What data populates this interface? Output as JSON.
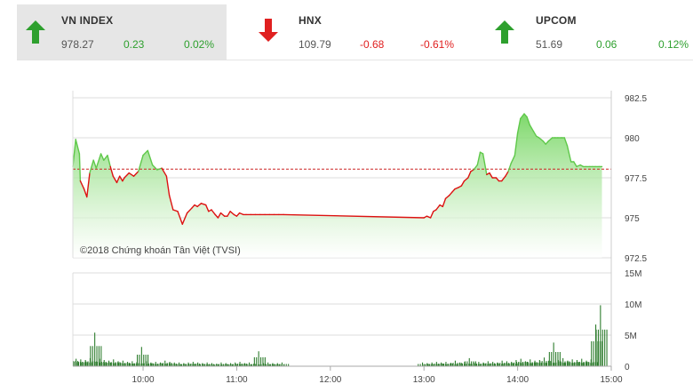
{
  "indices": [
    {
      "name": "VN INDEX",
      "value": "978.27",
      "change": "0.23",
      "percent": "0.02%",
      "direction": "up",
      "icon": "arrow-up-icon",
      "active": true
    },
    {
      "name": "HNX",
      "value": "109.79",
      "change": "-0.68",
      "percent": "-0.61%",
      "direction": "down",
      "icon": "arrow-down-icon",
      "active": false
    },
    {
      "name": "UPCOM",
      "value": "51.69",
      "change": "0.06",
      "percent": "0.12%",
      "direction": "up",
      "icon": "arrow-up-icon",
      "active": false
    }
  ],
  "colors": {
    "up": "#2ea02e",
    "down": "#e02020",
    "line": "#dd1111",
    "area": "#7fd86a",
    "reference": "#cc2222",
    "volume": "#2e7d2e"
  },
  "chart_data": {
    "type": "area",
    "copyright": "©2018 Chứng khoán Tân Việt (TVSI)",
    "price": {
      "ylim": [
        972.5,
        982.5
      ],
      "yticks": [
        "982.5",
        "980",
        "977.5",
        "975",
        "972.5"
      ],
      "ytick_values": [
        982.5,
        980,
        977.5,
        975,
        972.5
      ],
      "reference": 978.04,
      "x": [
        9.25,
        9.28,
        9.32,
        9.33,
        9.37,
        9.4,
        9.43,
        9.47,
        9.5,
        9.55,
        9.58,
        9.62,
        9.65,
        9.68,
        9.72,
        9.75,
        9.78,
        9.8,
        9.85,
        9.9,
        9.95,
        10.0,
        10.05,
        10.1,
        10.15,
        10.2,
        10.25,
        10.28,
        10.32,
        10.37,
        10.42,
        10.47,
        10.52,
        10.55,
        10.58,
        10.62,
        10.67,
        10.7,
        10.73,
        10.77,
        10.8,
        10.83,
        10.87,
        10.9,
        10.93,
        10.97,
        11.0,
        11.03,
        11.07,
        11.1,
        11.15,
        11.2,
        11.25,
        11.3,
        11.35,
        11.4,
        11.45,
        11.5,
        13.0,
        13.03,
        13.07,
        13.1,
        13.13,
        13.17,
        13.2,
        13.23,
        13.27,
        13.3,
        13.33,
        13.37,
        13.4,
        13.43,
        13.47,
        13.5,
        13.53,
        13.57,
        13.6,
        13.63,
        13.67,
        13.7,
        13.73,
        13.77,
        13.8,
        13.83,
        13.87,
        13.9,
        13.93,
        13.97,
        14.0,
        14.03,
        14.07,
        14.1,
        14.13,
        14.17,
        14.2,
        14.23,
        14.27,
        14.3,
        14.33,
        14.37,
        14.4,
        14.43,
        14.47,
        14.5,
        14.53,
        14.57,
        14.6,
        14.63,
        14.67,
        14.7,
        14.73,
        14.77,
        14.8,
        14.83,
        14.87,
        14.9
      ],
      "y": [
        978.2,
        979.9,
        979.0,
        977.3,
        976.8,
        976.3,
        977.8,
        978.6,
        978.1,
        979.0,
        978.6,
        978.9,
        978.2,
        977.6,
        977.2,
        977.6,
        977.3,
        977.5,
        977.8,
        977.6,
        977.9,
        978.9,
        979.2,
        978.3,
        978.0,
        978.1,
        977.6,
        976.4,
        975.5,
        975.4,
        974.6,
        975.3,
        975.6,
        975.8,
        975.7,
        975.9,
        975.8,
        975.4,
        975.5,
        975.2,
        975.0,
        975.3,
        975.1,
        975.1,
        975.4,
        975.2,
        975.1,
        975.3,
        975.2,
        975.2,
        975.2,
        975.2,
        975.2,
        975.2,
        975.2,
        975.2,
        975.2,
        975.2,
        975.0,
        975.1,
        975.0,
        975.4,
        975.5,
        975.8,
        975.7,
        976.2,
        976.4,
        976.6,
        976.8,
        976.9,
        977.0,
        977.3,
        977.5,
        977.9,
        978.0,
        978.3,
        979.1,
        979.0,
        977.7,
        977.8,
        977.5,
        977.5,
        977.3,
        977.3,
        977.6,
        977.9,
        978.4,
        978.9,
        980.3,
        981.2,
        981.5,
        981.3,
        980.8,
        980.4,
        980.1,
        980.0,
        979.8,
        979.6,
        979.8,
        980.0,
        980.0,
        980.0,
        980.0,
        980.0,
        979.5,
        978.5,
        978.5,
        978.2,
        978.3,
        978.2,
        978.2,
        978.2,
        978.2,
        978.2,
        978.2,
        978.2
      ]
    },
    "volume": {
      "ylim": [
        0,
        15
      ],
      "yticks": [
        "15M",
        "10M",
        "5M",
        "0"
      ],
      "ytick_values": [
        15,
        10,
        5,
        0
      ],
      "x": [
        9.25,
        9.3,
        9.35,
        9.4,
        9.45,
        9.5,
        9.55,
        9.6,
        9.65,
        9.7,
        9.75,
        9.8,
        9.85,
        9.9,
        9.95,
        10.0,
        10.05,
        10.1,
        10.15,
        10.2,
        10.25,
        10.3,
        10.35,
        10.4,
        10.45,
        10.5,
        10.55,
        10.6,
        10.65,
        10.7,
        10.75,
        10.8,
        10.85,
        10.9,
        10.95,
        11.0,
        11.05,
        11.1,
        11.15,
        11.2,
        11.25,
        11.3,
        11.35,
        11.4,
        11.45,
        11.5,
        13.0,
        13.05,
        13.1,
        13.15,
        13.2,
        13.25,
        13.3,
        13.35,
        13.4,
        13.45,
        13.5,
        13.55,
        13.6,
        13.65,
        13.7,
        13.75,
        13.8,
        13.85,
        13.9,
        13.95,
        14.0,
        14.05,
        14.1,
        14.15,
        14.2,
        14.25,
        14.3,
        14.35,
        14.4,
        14.45,
        14.5,
        14.55,
        14.6,
        14.65,
        14.7,
        14.75,
        14.8,
        14.85,
        14.9
      ],
      "y": [
        1.4,
        1.2,
        1.1,
        1.0,
        1.3,
        5.4,
        1.2,
        1.0,
        0.9,
        1.1,
        0.8,
        0.9,
        0.7,
        0.8,
        0.7,
        3.1,
        0.8,
        0.6,
        0.7,
        0.6,
        0.9,
        0.7,
        0.6,
        0.6,
        0.5,
        0.6,
        0.7,
        0.6,
        0.5,
        0.6,
        0.5,
        0.4,
        0.6,
        0.5,
        0.5,
        0.6,
        0.7,
        0.5,
        0.6,
        0.4,
        2.4,
        0.5,
        0.6,
        0.5,
        0.5,
        0.6,
        0.6,
        0.5,
        0.6,
        0.7,
        0.6,
        0.7,
        0.5,
        0.9,
        0.6,
        0.7,
        1.3,
        0.6,
        0.7,
        0.6,
        0.8,
        0.7,
        0.6,
        0.9,
        0.8,
        0.7,
        1.0,
        1.2,
        0.8,
        1.1,
        0.9,
        1.0,
        1.4,
        0.9,
        3.8,
        1.0,
        1.3,
        0.9,
        1.1,
        1.0,
        1.2,
        0.9,
        1.1,
        6.7,
        9.8
      ]
    },
    "xticks": [
      "10:00",
      "11:00",
      "12:00",
      "13:00",
      "14:00",
      "15:00"
    ],
    "xtick_values": [
      10,
      11,
      12,
      13,
      14,
      15
    ],
    "xlim": [
      9.25,
      15.0
    ]
  }
}
